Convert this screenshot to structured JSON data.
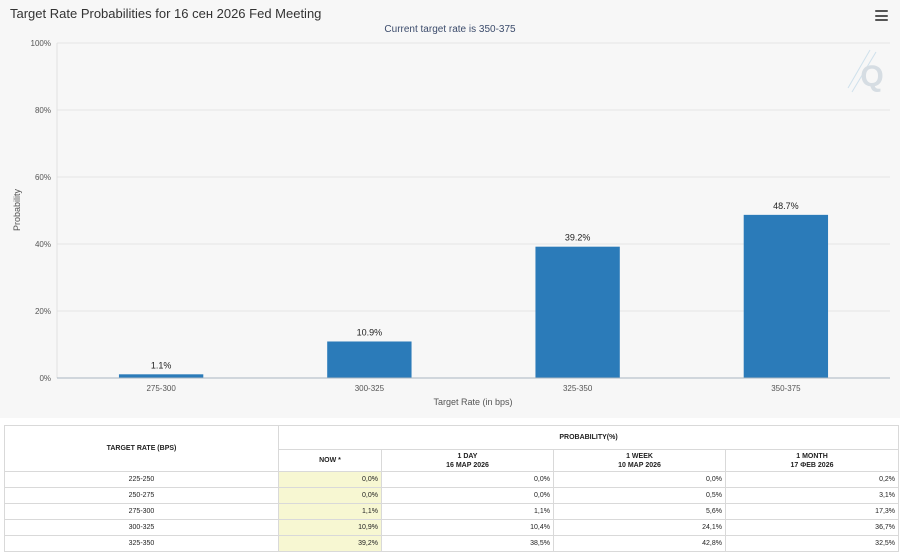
{
  "chart": {
    "title": "Target Rate Probabilities for 16 сен 2026 Fed Meeting",
    "subtitle": "Current target rate is 350-375",
    "menu_icon": "hamburger-menu-icon",
    "watermark": "Q",
    "bar_color": "#2b7bb9",
    "subtitle_color": "#3c4c6c"
  },
  "chart_data": {
    "type": "bar",
    "categories": [
      "275-300",
      "300-325",
      "325-350",
      "350-375"
    ],
    "values": [
      1.1,
      10.9,
      39.2,
      48.7
    ],
    "value_labels": [
      "1.1%",
      "10.9%",
      "39.2%",
      "48.7%"
    ],
    "xlabel": "Target Rate (in bps)",
    "ylabel": "Probability",
    "ylim": [
      0,
      100
    ],
    "yticks": [
      0,
      20,
      40,
      60,
      80,
      100
    ],
    "ytick_labels": [
      "0%",
      "20%",
      "40%",
      "60%",
      "80%",
      "100%"
    ]
  },
  "table": {
    "header_rate": "TARGET RATE (BPS)",
    "header_probability": "PROBABILITY(%)",
    "columns": [
      {
        "line1": "NOW *",
        "line2": ""
      },
      {
        "line1": "1 DAY",
        "line2": "16 МАР 2026"
      },
      {
        "line1": "1 WEEK",
        "line2": "10 МАР 2026"
      },
      {
        "line1": "1 MONTH",
        "line2": "17 ФЕВ 2026"
      }
    ],
    "rows": [
      {
        "rate": "225-250",
        "now": "0,0%",
        "day": "0,0%",
        "week": "0,0%",
        "month": "0,2%"
      },
      {
        "rate": "250-275",
        "now": "0,0%",
        "day": "0,0%",
        "week": "0,5%",
        "month": "3,1%"
      },
      {
        "rate": "275-300",
        "now": "1,1%",
        "day": "1,1%",
        "week": "5,6%",
        "month": "17,3%"
      },
      {
        "rate": "300-325",
        "now": "10,9%",
        "day": "10,4%",
        "week": "24,1%",
        "month": "36,7%"
      },
      {
        "rate": "325-350",
        "now": "39,2%",
        "day": "38,5%",
        "week": "42,8%",
        "month": "32,5%"
      }
    ]
  }
}
